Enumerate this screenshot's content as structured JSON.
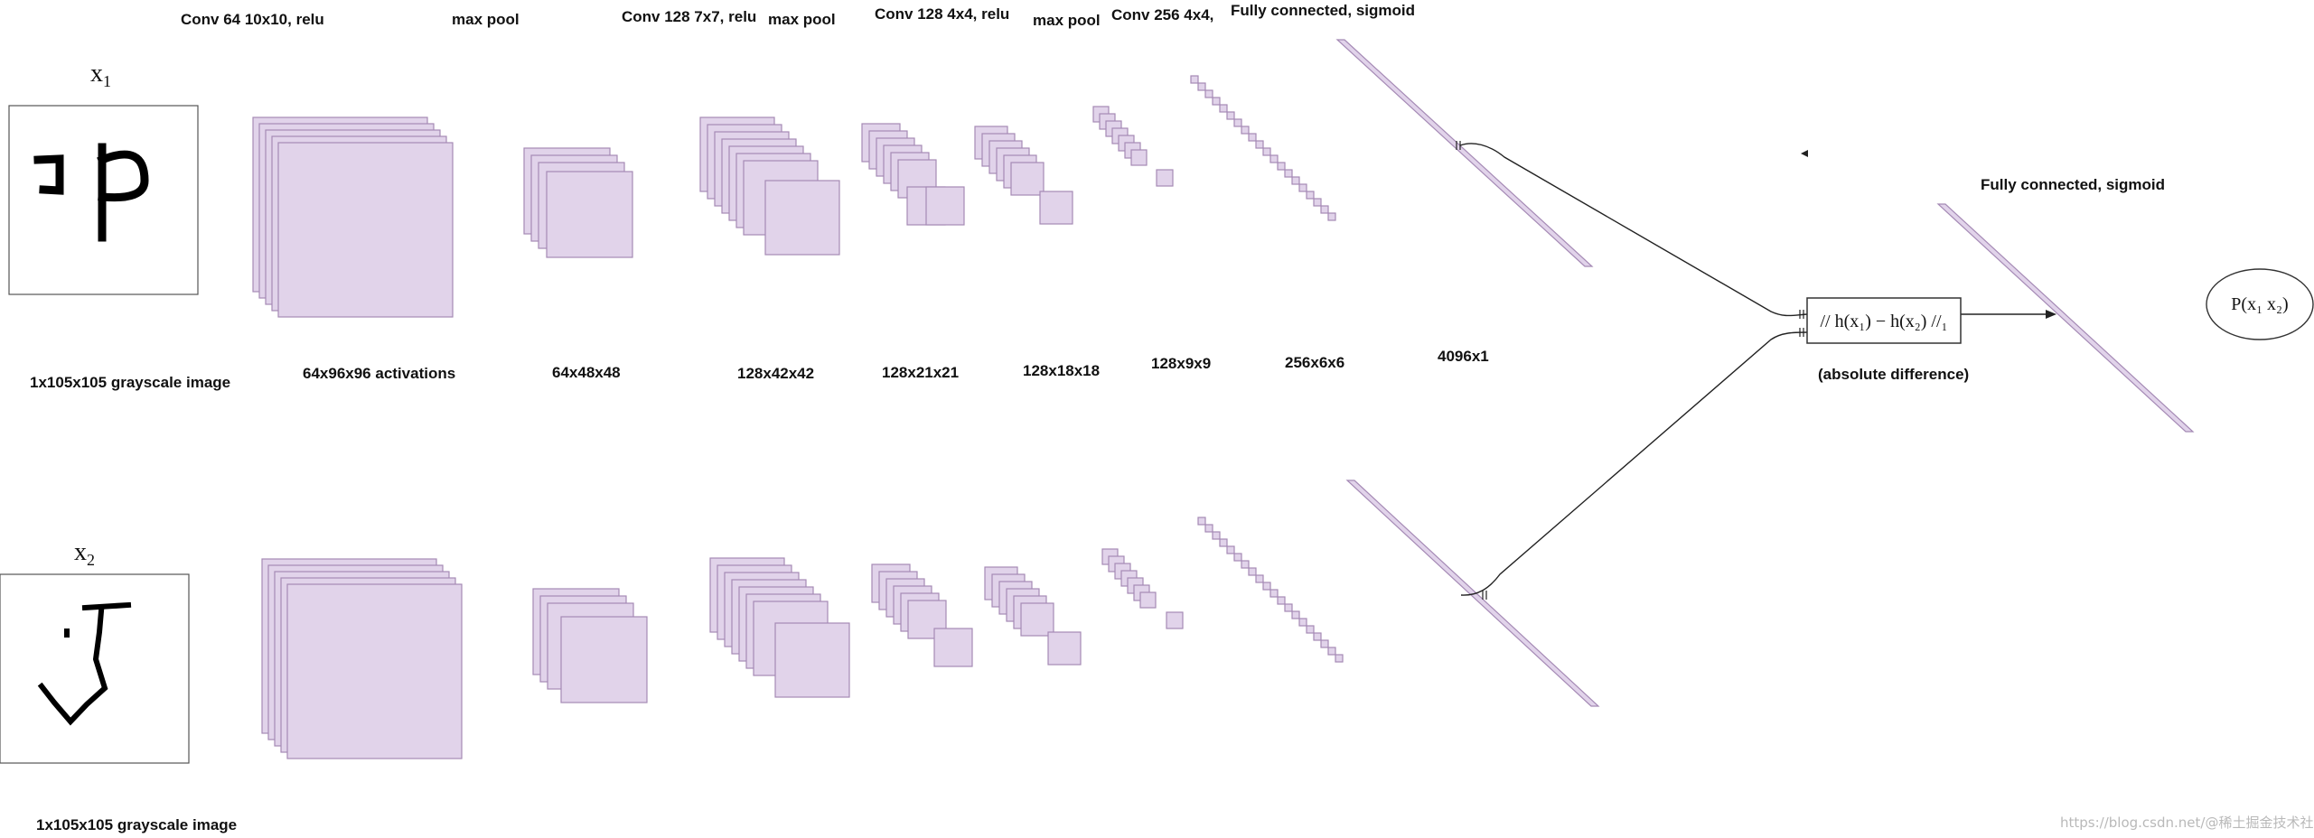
{
  "top_headers": {
    "conv1": "Conv 64 10x10, relu",
    "pool1": "max pool",
    "conv2": "Conv 128 7x7, relu",
    "pool2": "max pool",
    "conv3": "Conv 128 4x4, relu",
    "pool3": "max pool",
    "conv4": "Conv 256 4x4,",
    "fc1": "Fully connected, sigmoid"
  },
  "inputs": {
    "x1_label": "x",
    "x1_sub": "1",
    "x2_label": "x",
    "x2_sub": "2",
    "caption1": "1x105x105 grayscale image",
    "caption2": "1x105x105 grayscale image"
  },
  "shape_labels": {
    "conv1": "64x96x96 activations",
    "pool1": "64x48x48",
    "conv2": "128x42x42",
    "pool2": "128x21x21",
    "conv3": "128x18x18",
    "pool3": "128x9x9",
    "conv4": "256x6x6",
    "fc1": "4096x1"
  },
  "distance": {
    "box_text": "// h(x₁) − h(x₂) //₁",
    "caption": "(absolute difference)"
  },
  "output": {
    "header": "Fully connected, sigmoid",
    "text": "P(x₁  x₂)"
  },
  "watermark": "https://blog.csdn.net/@稀土掘金技术社区",
  "colors": {
    "feature_map_fill": "#e1d3ea",
    "feature_map_stroke": "#a58ab5"
  }
}
